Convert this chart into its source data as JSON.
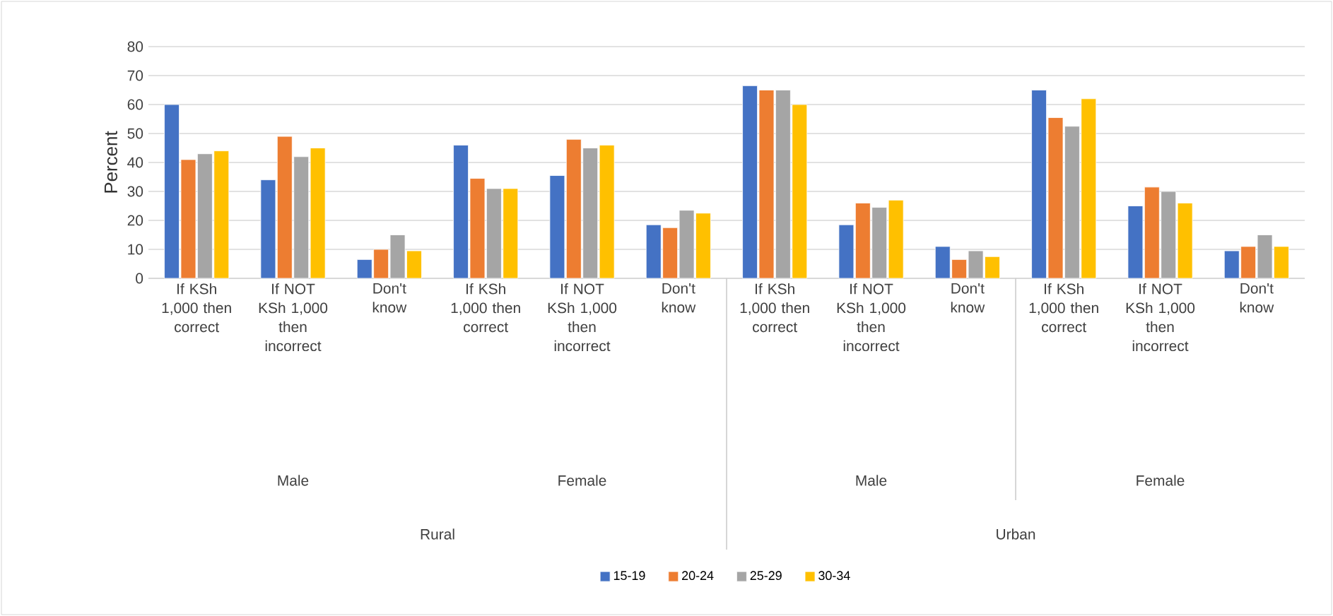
{
  "chart_data": {
    "type": "bar",
    "ylabel": "Percent",
    "categories": [
      "If KSh 1,000 then correct",
      "If NOT KSh 1,000 then incorrect",
      "Don't know",
      "If KSh 1,000 then correct",
      "If NOT KSh 1,000 then incorrect",
      "Don't know",
      "If KSh 1,000 then correct",
      "If NOT KSh 1,000 then incorrect",
      "Don't know",
      "If KSh 1,000 then correct",
      "If NOT KSh 1,000 then incorrect",
      "Don't know"
    ],
    "series": [
      {
        "name": "15-19",
        "color": "#4472c4",
        "values": [
          60,
          34,
          6.5,
          46,
          35.5,
          18.5,
          66.5,
          18.5,
          11,
          65,
          25,
          9.5
        ]
      },
      {
        "name": "20-24",
        "color": "#ed7d31",
        "values": [
          41,
          49,
          10,
          34.5,
          48,
          17.5,
          65,
          26,
          6.5,
          55.5,
          31.5,
          11
        ]
      },
      {
        "name": "25-29",
        "color": "#a5a5a5",
        "values": [
          43,
          42,
          15,
          31,
          45,
          23.5,
          65,
          24.5,
          9.5,
          52.5,
          30,
          15
        ]
      },
      {
        "name": "30-34",
        "color": "#ffc000",
        "values": [
          44,
          45,
          9.5,
          31,
          46,
          22.5,
          60,
          27,
          7.5,
          62,
          26,
          11
        ]
      }
    ],
    "ylim": [
      0,
      80
    ],
    "yticks": [
      0,
      10,
      20,
      30,
      40,
      50,
      60,
      70,
      80
    ],
    "grid": "y",
    "legend": "bottom",
    "annotations": [
      "Male",
      "Female",
      "Male",
      "Female",
      "Rural",
      "Urban"
    ]
  }
}
